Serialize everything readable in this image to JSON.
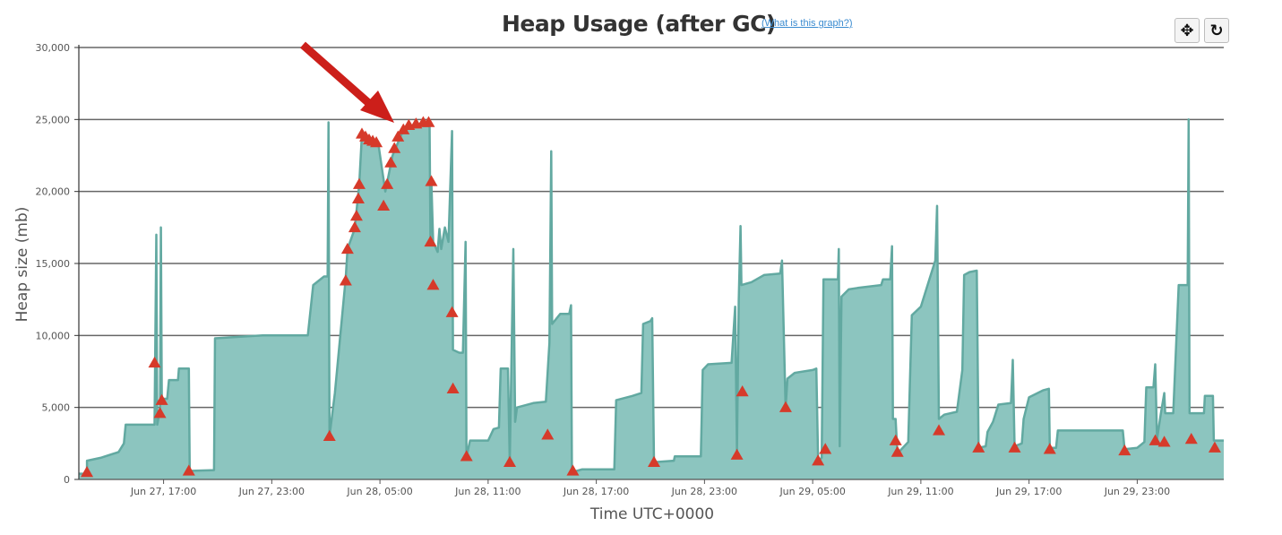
{
  "header": {
    "title": "Heap Usage (after GC)",
    "help_link": "(What is this graph?)"
  },
  "toolbar": {
    "pan_icon": "move-cross-icon",
    "reset_icon": "reset-rotate-icon",
    "pan_glyph": "✥",
    "reset_glyph": "↻"
  },
  "colors": {
    "area_fill": "#8cc5bf",
    "area_line": "#62a9a1",
    "gc_marker": "#d63a2a",
    "gridline": "#666666",
    "arrow": "#cc1f1a"
  },
  "chart_data": {
    "type": "area",
    "ylabel": "Heap size (mb)",
    "xlabel": "Time UTC+0000",
    "ylim": [
      0,
      30000
    ],
    "yticks": [
      "0",
      "5,000",
      "10,000",
      "15,000",
      "20,000",
      "25,000",
      "30,000"
    ],
    "ytick_values": [
      0,
      5000,
      10000,
      15000,
      20000,
      25000,
      30000
    ],
    "xlim_hours_from_jun27_00": [
      12.3,
      75.8
    ],
    "xticks": [
      "Jun 27, 17:00",
      "Jun 27, 23:00",
      "Jun 28, 05:00",
      "Jun 28, 11:00",
      "Jun 28, 17:00",
      "Jun 28, 23:00",
      "Jun 29, 05:00",
      "Jun 29, 11:00",
      "Jun 29, 17:00",
      "Jun 29, 23:00"
    ],
    "xtick_hours": [
      17,
      23,
      29,
      35,
      41,
      47,
      53,
      59,
      65,
      71
    ],
    "grid": true,
    "series": [
      {
        "name": "",
        "points": [
          [
            12.3,
            400
          ],
          [
            12.75,
            400
          ],
          [
            12.75,
            1300
          ],
          [
            13.5,
            1500
          ],
          [
            14.5,
            1900
          ],
          [
            14.8,
            2500
          ],
          [
            14.9,
            3800
          ],
          [
            16.5,
            3800
          ],
          [
            16.6,
            17000
          ],
          [
            16.65,
            3800
          ],
          [
            16.8,
            4800
          ],
          [
            16.85,
            17500
          ],
          [
            16.9,
            5600
          ],
          [
            17.2,
            5600
          ],
          [
            17.3,
            6900
          ],
          [
            17.8,
            6900
          ],
          [
            17.85,
            7700
          ],
          [
            18.4,
            7700
          ],
          [
            18.45,
            400
          ],
          [
            18.6,
            600
          ],
          [
            19.8,
            650
          ],
          [
            19.85,
            9800
          ],
          [
            22.5,
            10000
          ],
          [
            25.0,
            10000
          ],
          [
            25.3,
            13500
          ],
          [
            25.9,
            14100
          ],
          [
            26.1,
            14100
          ],
          [
            26.15,
            24800
          ],
          [
            26.2,
            3000
          ],
          [
            26.5,
            6000
          ],
          [
            27.1,
            14000
          ],
          [
            27.2,
            16000
          ],
          [
            27.6,
            17400
          ],
          [
            27.85,
            20500
          ],
          [
            28.0,
            24000
          ],
          [
            28.6,
            23500
          ],
          [
            28.9,
            23400
          ],
          [
            29.3,
            20000
          ],
          [
            29.7,
            22500
          ],
          [
            30.2,
            24000
          ],
          [
            30.8,
            24600
          ],
          [
            31.5,
            24700
          ],
          [
            31.75,
            24700
          ],
          [
            31.8,
            16500
          ],
          [
            31.85,
            20700
          ],
          [
            31.95,
            16500
          ],
          [
            32.2,
            15800
          ],
          [
            32.3,
            17400
          ],
          [
            32.4,
            16000
          ],
          [
            32.6,
            17500
          ],
          [
            32.8,
            16500
          ],
          [
            33.0,
            24200
          ],
          [
            33.05,
            9000
          ],
          [
            33.4,
            8800
          ],
          [
            33.6,
            8800
          ],
          [
            33.75,
            16500
          ],
          [
            33.8,
            1600
          ],
          [
            34.0,
            2700
          ],
          [
            35.0,
            2700
          ],
          [
            35.3,
            3500
          ],
          [
            35.6,
            3600
          ],
          [
            35.7,
            7700
          ],
          [
            36.1,
            7700
          ],
          [
            36.2,
            1200
          ],
          [
            36.4,
            16000
          ],
          [
            36.5,
            4000
          ],
          [
            36.6,
            5000
          ],
          [
            37.5,
            5300
          ],
          [
            38.2,
            5400
          ],
          [
            38.4,
            9500
          ],
          [
            38.5,
            22800
          ],
          [
            38.55,
            10800
          ],
          [
            39.0,
            11500
          ],
          [
            39.5,
            11500
          ],
          [
            39.6,
            12100
          ],
          [
            39.65,
            500
          ],
          [
            40.2,
            700
          ],
          [
            42.0,
            700
          ],
          [
            42.1,
            5500
          ],
          [
            43.0,
            5800
          ],
          [
            43.5,
            6000
          ],
          [
            43.6,
            10800
          ],
          [
            44.0,
            11000
          ],
          [
            44.1,
            11200
          ],
          [
            44.2,
            1200
          ],
          [
            45.3,
            1300
          ],
          [
            45.35,
            1600
          ],
          [
            46.8,
            1600
          ],
          [
            46.9,
            7600
          ],
          [
            47.2,
            8000
          ],
          [
            48.5,
            8100
          ],
          [
            48.7,
            12000
          ],
          [
            48.8,
            2000
          ],
          [
            48.9,
            12400
          ],
          [
            49.0,
            17600
          ],
          [
            49.05,
            13500
          ],
          [
            49.6,
            13700
          ],
          [
            50.3,
            14200
          ],
          [
            51.2,
            14300
          ],
          [
            51.3,
            15200
          ],
          [
            51.5,
            5000
          ],
          [
            51.6,
            7000
          ],
          [
            52.0,
            7400
          ],
          [
            53.0,
            7600
          ],
          [
            53.2,
            7700
          ],
          [
            53.3,
            1300
          ],
          [
            53.5,
            1500
          ],
          [
            53.6,
            13900
          ],
          [
            54.4,
            13900
          ],
          [
            54.45,
            16000
          ],
          [
            54.5,
            2300
          ],
          [
            54.6,
            12700
          ],
          [
            55.0,
            13200
          ],
          [
            55.5,
            13300
          ],
          [
            56.8,
            13500
          ],
          [
            56.9,
            13900
          ],
          [
            57.3,
            13900
          ],
          [
            57.4,
            16200
          ],
          [
            57.45,
            4200
          ],
          [
            57.6,
            4200
          ],
          [
            57.7,
            1800
          ],
          [
            58.3,
            2600
          ],
          [
            58.5,
            11400
          ],
          [
            59.0,
            12000
          ],
          [
            59.5,
            14000
          ],
          [
            59.8,
            15200
          ],
          [
            59.9,
            19000
          ],
          [
            60.0,
            4200
          ],
          [
            60.3,
            4500
          ],
          [
            61.0,
            4700
          ],
          [
            61.3,
            7600
          ],
          [
            61.4,
            14200
          ],
          [
            61.7,
            14400
          ],
          [
            62.1,
            14500
          ],
          [
            62.2,
            2200
          ],
          [
            62.6,
            2300
          ],
          [
            62.7,
            3300
          ],
          [
            63.0,
            4000
          ],
          [
            63.3,
            5200
          ],
          [
            64.0,
            5300
          ],
          [
            64.1,
            8300
          ],
          [
            64.2,
            2300
          ],
          [
            64.6,
            2500
          ],
          [
            64.7,
            4200
          ],
          [
            65.0,
            5700
          ],
          [
            65.8,
            6200
          ],
          [
            66.1,
            6300
          ],
          [
            66.15,
            2200
          ],
          [
            66.5,
            2200
          ],
          [
            66.6,
            3400
          ],
          [
            68.5,
            3400
          ],
          [
            70.2,
            3400
          ],
          [
            70.3,
            2100
          ],
          [
            71.0,
            2200
          ],
          [
            71.4,
            2600
          ],
          [
            71.5,
            6400
          ],
          [
            71.9,
            6400
          ],
          [
            72.0,
            8000
          ],
          [
            72.1,
            2800
          ],
          [
            72.3,
            4500
          ],
          [
            72.5,
            6000
          ],
          [
            72.55,
            4600
          ],
          [
            73.0,
            4600
          ],
          [
            73.3,
            13500
          ],
          [
            73.8,
            13500
          ],
          [
            73.85,
            25000
          ],
          [
            73.9,
            4600
          ],
          [
            74.7,
            4600
          ],
          [
            74.75,
            5800
          ],
          [
            75.2,
            5800
          ],
          [
            75.25,
            2700
          ],
          [
            75.8,
            2700
          ]
        ]
      }
    ],
    "gc_events": [
      [
        12.75,
        500
      ],
      [
        16.5,
        8100
      ],
      [
        16.8,
        4600
      ],
      [
        16.9,
        5500
      ],
      [
        18.4,
        600
      ],
      [
        26.2,
        3000
      ],
      [
        27.1,
        13800
      ],
      [
        27.2,
        16000
      ],
      [
        27.6,
        17500
      ],
      [
        27.7,
        18300
      ],
      [
        27.8,
        19500
      ],
      [
        27.85,
        20500
      ],
      [
        28.0,
        24000
      ],
      [
        28.2,
        23800
      ],
      [
        28.4,
        23600
      ],
      [
        28.6,
        23500
      ],
      [
        28.8,
        23400
      ],
      [
        29.2,
        19000
      ],
      [
        29.4,
        20500
      ],
      [
        29.6,
        22000
      ],
      [
        29.8,
        23000
      ],
      [
        30.0,
        23800
      ],
      [
        30.3,
        24300
      ],
      [
        30.6,
        24600
      ],
      [
        31.0,
        24700
      ],
      [
        31.4,
        24800
      ],
      [
        31.7,
        24800
      ],
      [
        31.8,
        16500
      ],
      [
        31.85,
        20700
      ],
      [
        31.95,
        13500
      ],
      [
        33.0,
        11600
      ],
      [
        33.05,
        6300
      ],
      [
        33.8,
        1600
      ],
      [
        36.2,
        1200
      ],
      [
        38.3,
        3100
      ],
      [
        39.7,
        600
      ],
      [
        44.2,
        1200
      ],
      [
        48.8,
        1700
      ],
      [
        49.1,
        6100
      ],
      [
        51.5,
        5000
      ],
      [
        53.3,
        1300
      ],
      [
        53.7,
        2100
      ],
      [
        57.6,
        2700
      ],
      [
        57.7,
        1900
      ],
      [
        60.0,
        3400
      ],
      [
        62.2,
        2200
      ],
      [
        64.2,
        2200
      ],
      [
        66.15,
        2100
      ],
      [
        70.3,
        2000
      ],
      [
        72.0,
        2700
      ],
      [
        72.5,
        2600
      ],
      [
        74.0,
        2800
      ],
      [
        75.3,
        2200
      ]
    ]
  }
}
